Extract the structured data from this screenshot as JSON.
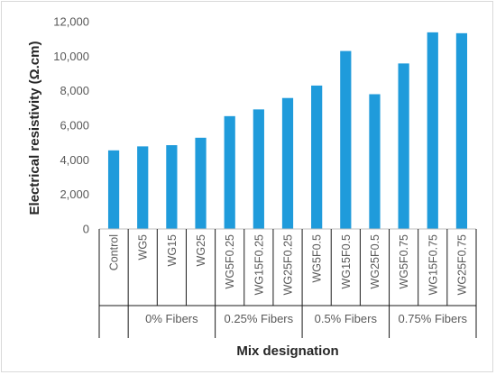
{
  "chart_data": {
    "type": "bar",
    "categories": [
      "Control",
      "WG5",
      "WG15",
      "WG25",
      "WG5F0.25",
      "WG15F0.25",
      "WG25F0.25",
      "WG5F0.5",
      "WG15F0.5",
      "WG25F0.5",
      "WG5F0.75",
      "WG15F0.75",
      "WG25F0.75"
    ],
    "values": [
      4550,
      4780,
      4850,
      5280,
      6530,
      6920,
      7580,
      8300,
      10300,
      7800,
      9580,
      11380,
      11330
    ],
    "groups": [
      {
        "label": "",
        "categories": [
          "Control"
        ]
      },
      {
        "label": "0% Fibers",
        "categories": [
          "WG5",
          "WG15",
          "WG25"
        ]
      },
      {
        "label": "0.25% Fibers",
        "categories": [
          "WG5F0.25",
          "WG15F0.25",
          "WG25F0.25"
        ]
      },
      {
        "label": "0.5% Fibers",
        "categories": [
          "WG5F0.5",
          "WG15F0.5",
          "WG25F0.5"
        ]
      },
      {
        "label": "0.75% Fibers",
        "categories": [
          "WG5F0.75",
          "WG15F0.75",
          "WG25F0.75"
        ]
      }
    ],
    "title": "",
    "xlabel": "Mix designation",
    "ylabel": "Electrical resistivity (Ω.cm)",
    "ylim": [
      0,
      12000
    ],
    "yticks": [
      0,
      2000,
      4000,
      6000,
      8000,
      10000,
      12000
    ],
    "ytick_labels": [
      "0",
      "2,000",
      "4,000",
      "6,000",
      "8,000",
      "10,000",
      "12,000"
    ],
    "grid": false,
    "legend": "none",
    "bar_color": "#1f9bdb"
  }
}
